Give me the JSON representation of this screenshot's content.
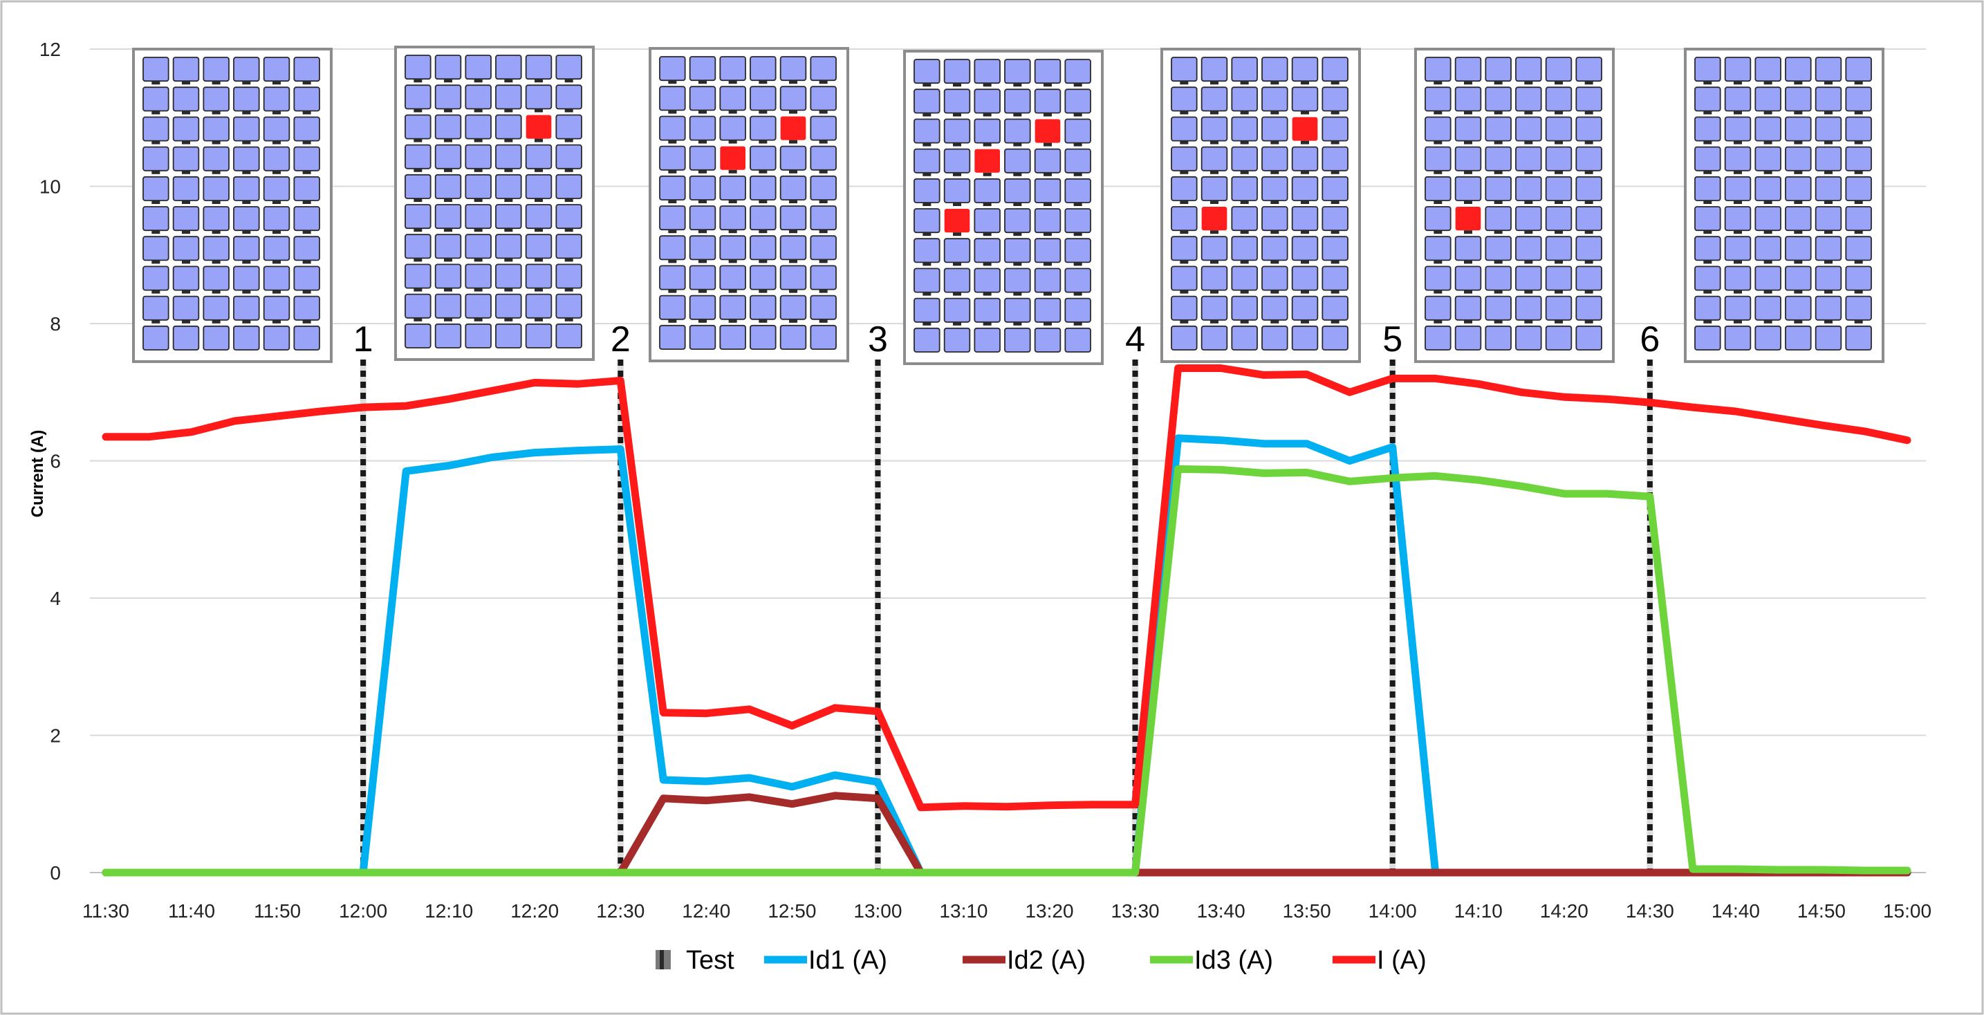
{
  "chart_data": {
    "type": "line",
    "title": "",
    "xlabel": "",
    "ylabel": "Current (A)",
    "ylim": [
      0,
      12
    ],
    "yticks": [
      0,
      2,
      4,
      6,
      8,
      10,
      12
    ],
    "grid": true,
    "legend_position": "bottom-center",
    "x": [
      "11:30",
      "11:35",
      "11:40",
      "11:45",
      "11:50",
      "11:55",
      "12:00",
      "12:05",
      "12:10",
      "12:15",
      "12:20",
      "12:25",
      "12:30",
      "12:35",
      "12:40",
      "12:45",
      "12:50",
      "12:55",
      "13:00",
      "13:05",
      "13:10",
      "13:15",
      "13:20",
      "13:25",
      "13:30",
      "13:35",
      "13:40",
      "13:45",
      "13:50",
      "13:55",
      "14:00",
      "14:05",
      "14:10",
      "14:15",
      "14:20",
      "14:25",
      "14:30",
      "14:35",
      "14:40",
      "14:45",
      "14:50",
      "14:55",
      "15:00"
    ],
    "xticks": [
      "11:30",
      "11:40",
      "11:50",
      "12:00",
      "12:10",
      "12:20",
      "12:30",
      "12:40",
      "12:50",
      "13:00",
      "13:10",
      "13:20",
      "13:30",
      "13:40",
      "13:50",
      "14:00",
      "14:10",
      "14:20",
      "14:30",
      "14:40",
      "14:50",
      "15:00"
    ],
    "series": [
      {
        "name": "Id1 (A)",
        "color": "#00b0f0",
        "values": [
          0,
          0,
          0,
          0,
          0,
          0,
          0,
          5.85,
          5.93,
          6.05,
          6.12,
          6.15,
          6.17,
          1.35,
          1.33,
          1.38,
          1.25,
          1.42,
          1.32,
          0,
          0,
          0,
          0,
          0,
          0,
          6.33,
          6.3,
          6.25,
          6.25,
          6.0,
          6.2,
          0,
          0,
          0,
          0,
          0,
          0,
          0,
          0,
          0,
          0,
          0,
          0
        ]
      },
      {
        "name": "Id2 (A)",
        "color": "#a52a2a",
        "values": [
          0,
          0,
          0,
          0,
          0,
          0,
          0,
          0,
          0,
          0,
          0,
          0,
          0,
          1.08,
          1.05,
          1.1,
          1.0,
          1.12,
          1.08,
          0,
          0,
          0,
          0,
          0,
          0,
          0,
          0,
          0,
          0,
          0,
          0,
          0,
          0,
          0,
          0,
          0,
          0,
          0,
          0,
          0,
          0,
          0,
          0
        ]
      },
      {
        "name": "Id3 (A)",
        "color": "#6ed43c",
        "values": [
          0,
          0,
          0,
          0,
          0,
          0,
          0,
          0,
          0,
          0,
          0,
          0,
          0,
          0,
          0,
          0,
          0,
          0,
          0,
          0,
          0,
          0,
          0,
          0,
          0,
          5.88,
          5.87,
          5.82,
          5.83,
          5.7,
          5.75,
          5.78,
          5.72,
          5.63,
          5.52,
          5.52,
          5.48,
          0.05,
          0.05,
          0.04,
          0.04,
          0.03,
          0.03
        ]
      },
      {
        "name": "I (A)",
        "color": "#ff1a1a",
        "values": [
          6.35,
          6.35,
          6.42,
          6.58,
          6.65,
          6.72,
          6.78,
          6.8,
          6.9,
          7.02,
          7.14,
          7.12,
          7.17,
          2.33,
          2.32,
          2.38,
          2.14,
          2.4,
          2.35,
          0.95,
          0.97,
          0.96,
          0.98,
          0.99,
          0.99,
          7.35,
          7.35,
          7.25,
          7.26,
          7.0,
          7.2,
          7.2,
          7.12,
          7.0,
          6.93,
          6.9,
          6.85,
          6.78,
          6.72,
          6.62,
          6.52,
          6.43,
          6.3
        ]
      }
    ],
    "tests": {
      "name": "Test",
      "times": [
        "12:00",
        "12:30",
        "13:00",
        "13:30",
        "14:00",
        "14:30"
      ],
      "labels": [
        "1",
        "2",
        "3",
        "4",
        "5",
        "6"
      ]
    },
    "panel_illustrations": [
      {
        "shaded_cells": []
      },
      {
        "shaded_cells": [
          [
            2,
            4
          ]
        ]
      },
      {
        "shaded_cells": [
          [
            3,
            2
          ],
          [
            2,
            4
          ]
        ]
      },
      {
        "shaded_cells": [
          [
            3,
            2
          ],
          [
            2,
            4
          ],
          [
            5,
            1
          ]
        ]
      },
      {
        "shaded_cells": [
          [
            2,
            4
          ],
          [
            5,
            1
          ]
        ]
      },
      {
        "shaded_cells": [
          [
            5,
            1
          ]
        ]
      },
      {
        "shaded_cells": []
      }
    ]
  }
}
